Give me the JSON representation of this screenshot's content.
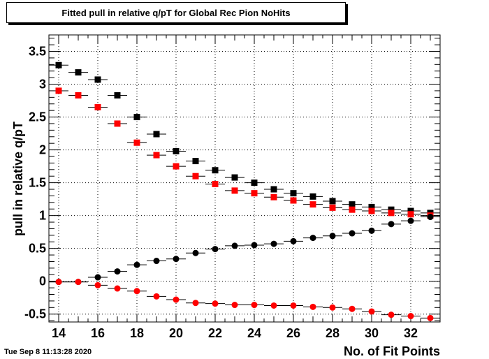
{
  "date_stamp": "Tue Sep  8 11:13:28 2020",
  "chart_data": {
    "type": "scatter",
    "title": "Fitted pull in relative q/pT for Global Rec Pion NoHits",
    "xlabel": "No. of Fit Points",
    "ylabel": "pull in relative q/pT",
    "xlim": [
      13.5,
      33.5
    ],
    "ylim": [
      -0.62,
      3.75
    ],
    "grid": true,
    "x_ticks": [
      14,
      16,
      18,
      20,
      22,
      24,
      26,
      28,
      30,
      32
    ],
    "y_ticks": [
      -0.5,
      0,
      0.5,
      1,
      1.5,
      2,
      2.5,
      3,
      3.5
    ],
    "x_tick_labels": [
      "14",
      "16",
      "18",
      "20",
      "22",
      "24",
      "26",
      "28",
      "30",
      "32"
    ],
    "y_tick_labels": [
      "-0.5",
      "0",
      "0.5",
      "1",
      "1.5",
      "2",
      "2.5",
      "3",
      "3.5"
    ],
    "x": [
      14,
      15,
      16,
      17,
      18,
      19,
      20,
      21,
      22,
      23,
      24,
      25,
      26,
      27,
      28,
      29,
      30,
      31,
      32,
      33
    ],
    "series": [
      {
        "marker": "square",
        "color": "#000000",
        "values": [
          3.29,
          3.18,
          3.07,
          2.83,
          2.5,
          2.24,
          1.98,
          1.83,
          1.69,
          1.58,
          1.5,
          1.4,
          1.34,
          1.29,
          1.22,
          1.17,
          1.13,
          1.09,
          1.07,
          1.04
        ]
      },
      {
        "marker": "square",
        "color": "#ff0000",
        "values": [
          2.9,
          2.83,
          2.65,
          2.4,
          2.11,
          1.92,
          1.75,
          1.6,
          1.48,
          1.38,
          1.34,
          1.28,
          1.23,
          1.17,
          1.12,
          1.09,
          1.07,
          1.04,
          1.02,
          1.0
        ]
      },
      {
        "marker": "circle",
        "color": "#000000",
        "values": [
          -0.01,
          -0.01,
          0.06,
          0.15,
          0.25,
          0.31,
          0.34,
          0.43,
          0.49,
          0.54,
          0.55,
          0.57,
          0.61,
          0.66,
          0.69,
          0.73,
          0.77,
          0.87,
          0.92,
          0.98
        ]
      },
      {
        "marker": "circle",
        "color": "#ff0000",
        "values": [
          -0.01,
          -0.01,
          -0.06,
          -0.11,
          -0.15,
          -0.23,
          -0.28,
          -0.33,
          -0.34,
          -0.36,
          -0.36,
          -0.37,
          -0.37,
          -0.39,
          -0.4,
          -0.42,
          -0.46,
          -0.51,
          -0.53,
          -0.56
        ]
      }
    ]
  }
}
